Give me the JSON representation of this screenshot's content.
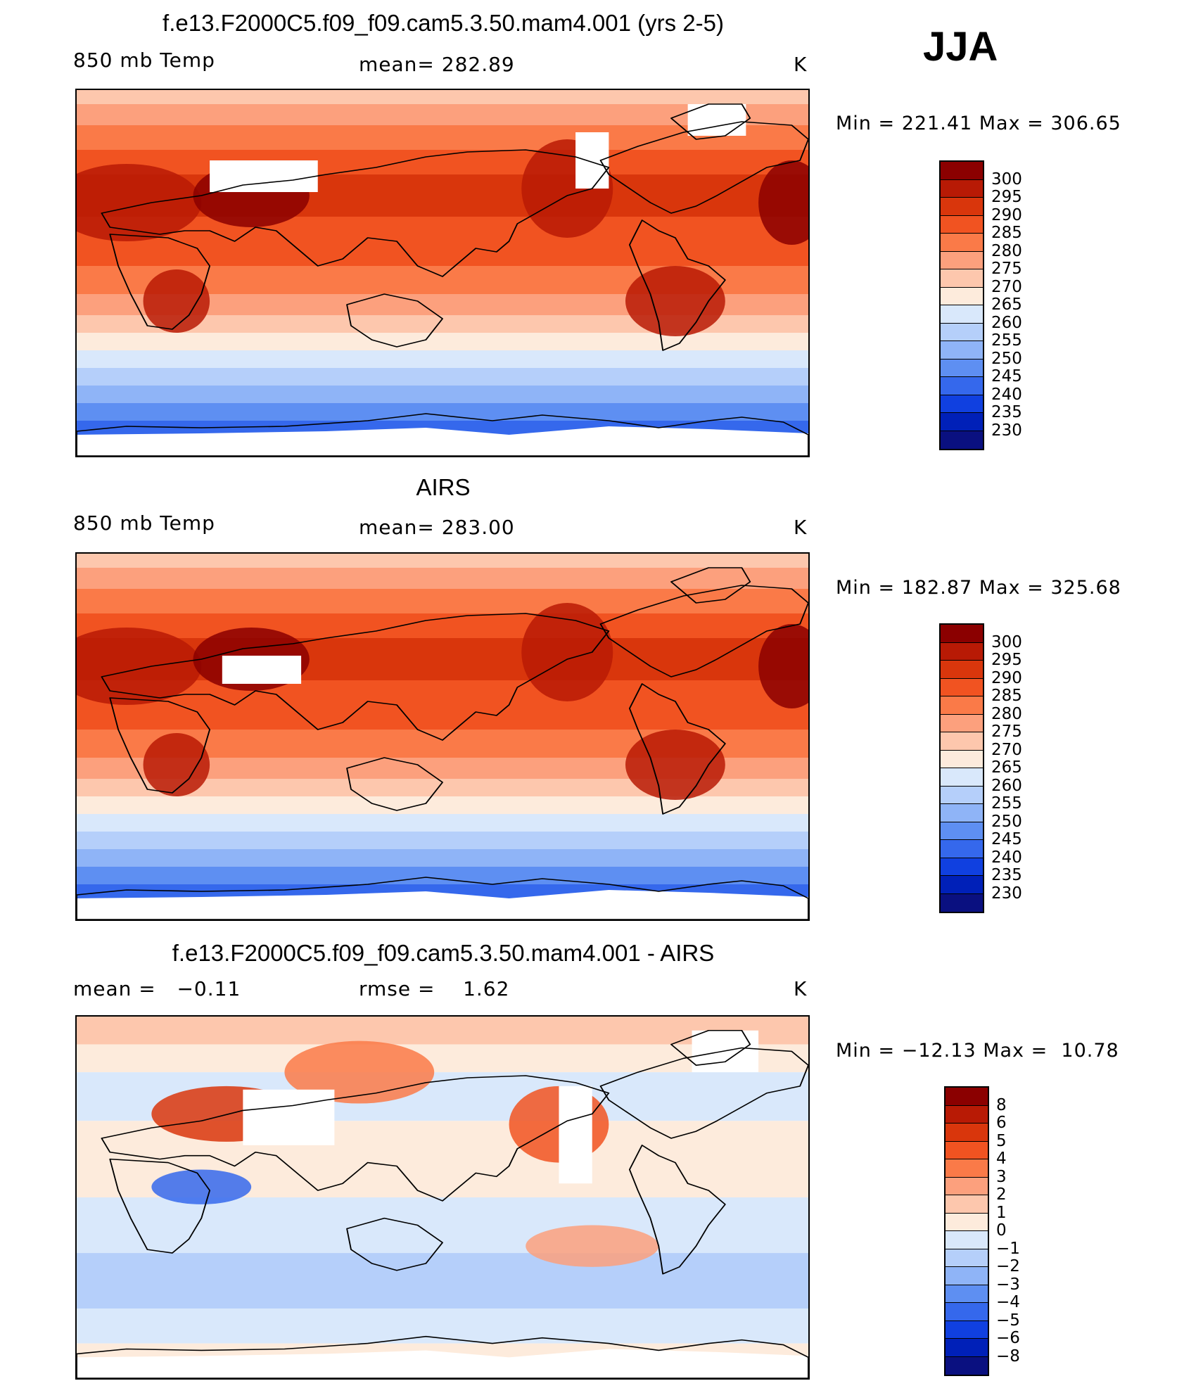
{
  "season": "JJA",
  "panels": [
    {
      "title": "f.e13.F2000C5.f09_f09.cam5.3.50.mam4.001 (yrs 2-5)",
      "left_label": "850 mb Temp",
      "center_label": "mean= 282.89",
      "units": "K",
      "minmax": "Min = 221.41 Max = 306.65",
      "colorbar": {
        "labels": [
          "300",
          "295",
          "290",
          "285",
          "280",
          "275",
          "270",
          "265",
          "260",
          "255",
          "250",
          "245",
          "240",
          "235",
          "230"
        ],
        "colors": [
          "#8b0000",
          "#b81a05",
          "#d9360c",
          "#f15321",
          "#fa7a48",
          "#fca07d",
          "#fdc7ad",
          "#fdebdc",
          "#d9e8fb",
          "#b5cffa",
          "#8fb4f7",
          "#5e8ff2",
          "#3568ec",
          "#1040e0",
          "#0020b8",
          "#0a1080"
        ]
      },
      "map_type": "model"
    },
    {
      "title": "AIRS",
      "left_label": "850 mb Temp",
      "center_label": "mean= 283.00",
      "units": "K",
      "minmax": "Min = 182.87 Max = 325.68",
      "colorbar": {
        "labels": [
          "300",
          "295",
          "290",
          "285",
          "280",
          "275",
          "270",
          "265",
          "260",
          "255",
          "250",
          "245",
          "240",
          "235",
          "230"
        ],
        "colors": [
          "#8b0000",
          "#b81a05",
          "#d9360c",
          "#f15321",
          "#fa7a48",
          "#fca07d",
          "#fdc7ad",
          "#fdebdc",
          "#d9e8fb",
          "#b5cffa",
          "#8fb4f7",
          "#5e8ff2",
          "#3568ec",
          "#1040e0",
          "#0020b8",
          "#0a1080"
        ]
      },
      "map_type": "obs"
    },
    {
      "title": "f.e13.F2000C5.f09_f09.cam5.3.50.mam4.001 - AIRS",
      "left_label": "mean =   −0.11",
      "center_label": "rmse =    1.62",
      "units": "K",
      "minmax": "Min = −12.13 Max =  10.78",
      "colorbar": {
        "labels": [
          "8",
          "6",
          "5",
          "4",
          "3",
          "2",
          "1",
          "0",
          "−1",
          "−2",
          "−3",
          "−4",
          "−5",
          "−6",
          "−8"
        ],
        "colors": [
          "#8b0000",
          "#b81a05",
          "#d9360c",
          "#f15321",
          "#fa7a48",
          "#fca07d",
          "#fdc7ad",
          "#fdebdc",
          "#d9e8fb",
          "#b5cffa",
          "#8fb4f7",
          "#5e8ff2",
          "#3568ec",
          "#1040e0",
          "#0020b8",
          "#0a1080"
        ]
      },
      "map_type": "diff"
    }
  ]
}
